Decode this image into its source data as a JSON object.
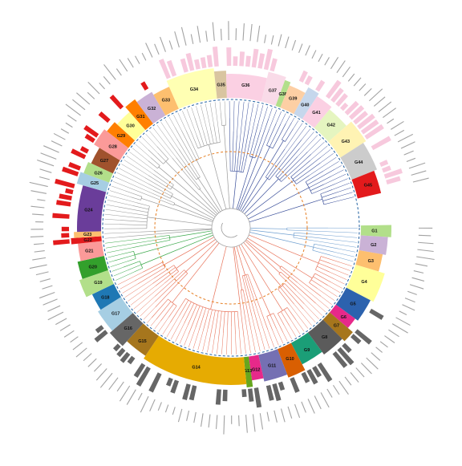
{
  "colors": {
    "tree_branch_default": "#9a9a9a",
    "tree_branch_red": "#e8735a",
    "tree_branch_blue": "#3a4f9a",
    "tree_branch_lightblue": "#6f9fd0",
    "tree_branch_green": "#3aa84a",
    "inner_ring": "#e67e22",
    "outer_ring": "#1f5fa0",
    "bar_dark": "#666666",
    "bar_pink": "#f7c9dd",
    "bar_red": "#e31a1c",
    "tip_label": "#555555"
  },
  "groups": [
    {
      "id": "G1",
      "label": "G1",
      "color": "#b2df8a",
      "tips": 2
    },
    {
      "id": "G2",
      "label": "G2",
      "color": "#cab2d6",
      "tips": 3
    },
    {
      "id": "G3",
      "label": "G3",
      "color": "#fdbf6f",
      "tips": 3
    },
    {
      "id": "G4",
      "label": "G4",
      "color": "#ffff99",
      "tips": 5
    },
    {
      "id": "G5",
      "label": "G5",
      "color": "#2c62ae",
      "tips": 4
    },
    {
      "id": "G6",
      "label": "G6",
      "color": "#e7298a",
      "tips": 2
    },
    {
      "id": "G7",
      "label": "G7",
      "color": "#a6761d",
      "tips": 2
    },
    {
      "id": "G8",
      "label": "G8",
      "color": "#5b5b5b",
      "tips": 4
    },
    {
      "id": "G9",
      "label": "G9",
      "color": "#1b9e77",
      "tips": 4
    },
    {
      "id": "G10",
      "label": "G10",
      "color": "#d95f02",
      "tips": 3
    },
    {
      "id": "G11",
      "label": "G11",
      "color": "#7570b3",
      "tips": 4
    },
    {
      "id": "G12",
      "label": "G12",
      "color": "#e7298a",
      "tips": 2
    },
    {
      "id": "G13",
      "label": "G13",
      "color": "#66a61e",
      "tips": 1
    },
    {
      "id": "G14",
      "label": "G14",
      "color": "#e6ab02",
      "tips": 18
    },
    {
      "id": "G15",
      "label": "G15",
      "color": "#a6761d",
      "tips": 4
    },
    {
      "id": "G16",
      "label": "G16",
      "color": "#666666",
      "tips": 3
    },
    {
      "id": "G17",
      "label": "G17",
      "color": "#a6cee3",
      "tips": 4
    },
    {
      "id": "G18",
      "label": "G18",
      "color": "#1f78b4",
      "tips": 3
    },
    {
      "id": "G19",
      "label": "G19",
      "color": "#b2df8a",
      "tips": 3
    },
    {
      "id": "G20",
      "label": "G20",
      "color": "#33a02c",
      "tips": 3
    },
    {
      "id": "G21",
      "label": "G21",
      "color": "#fb9a99",
      "tips": 3
    },
    {
      "id": "G22",
      "label": "G22",
      "color": "#e31a1c",
      "tips": 1
    },
    {
      "id": "G23",
      "label": "G23",
      "color": "#fdbf6f",
      "tips": 1
    },
    {
      "id": "G24",
      "label": "G24",
      "color": "#6a3d9a",
      "tips": 8
    },
    {
      "id": "G25",
      "label": "G25",
      "color": "#a6cee3",
      "tips": 2
    },
    {
      "id": "G26",
      "label": "G26",
      "color": "#b2df8a",
      "tips": 2
    },
    {
      "id": "G27",
      "label": "G27",
      "color": "#a0522d",
      "tips": 3
    },
    {
      "id": "G28",
      "label": "G28",
      "color": "#fb9a99",
      "tips": 3
    },
    {
      "id": "G29",
      "label": "G29",
      "color": "#ff7f00",
      "tips": 2
    },
    {
      "id": "G30",
      "label": "G30",
      "color": "#ffff99",
      "tips": 3
    },
    {
      "id": "G31",
      "label": "G31",
      "color": "#ff7f00",
      "tips": 2
    },
    {
      "id": "G32",
      "label": "G32",
      "color": "#cab2d6",
      "tips": 3
    },
    {
      "id": "G33",
      "label": "G33",
      "color": "#fdbf6f",
      "tips": 3
    },
    {
      "id": "G34",
      "label": "G34",
      "color": "#ffffb3",
      "tips": 8
    },
    {
      "id": "G35",
      "label": "G35",
      "color": "#d9c5a0",
      "tips": 2
    },
    {
      "id": "G36",
      "label": "G36",
      "color": "#fbd0e3",
      "tips": 7
    },
    {
      "id": "G37",
      "label": "G37",
      "color": "#f9dbe8",
      "tips": 3
    },
    {
      "id": "G38",
      "label": "G38",
      "color": "#b2df8a",
      "tips": 1
    },
    {
      "id": "G39",
      "label": "G39",
      "color": "#fdcfa4",
      "tips": 3
    },
    {
      "id": "G40",
      "label": "G40",
      "color": "#c6d7ec",
      "tips": 2
    },
    {
      "id": "G41",
      "label": "G41",
      "color": "#fbd0e3",
      "tips": 3
    },
    {
      "id": "G42",
      "label": "G42",
      "color": "#e5f5c0",
      "tips": 4
    },
    {
      "id": "G43",
      "label": "G43",
      "color": "#fff3b3",
      "tips": 4
    },
    {
      "id": "G44",
      "label": "G44",
      "color": "#cccccc",
      "tips": 5
    },
    {
      "id": "G45",
      "label": "G45",
      "color": "#e31a1c",
      "tips": 4
    }
  ]
}
